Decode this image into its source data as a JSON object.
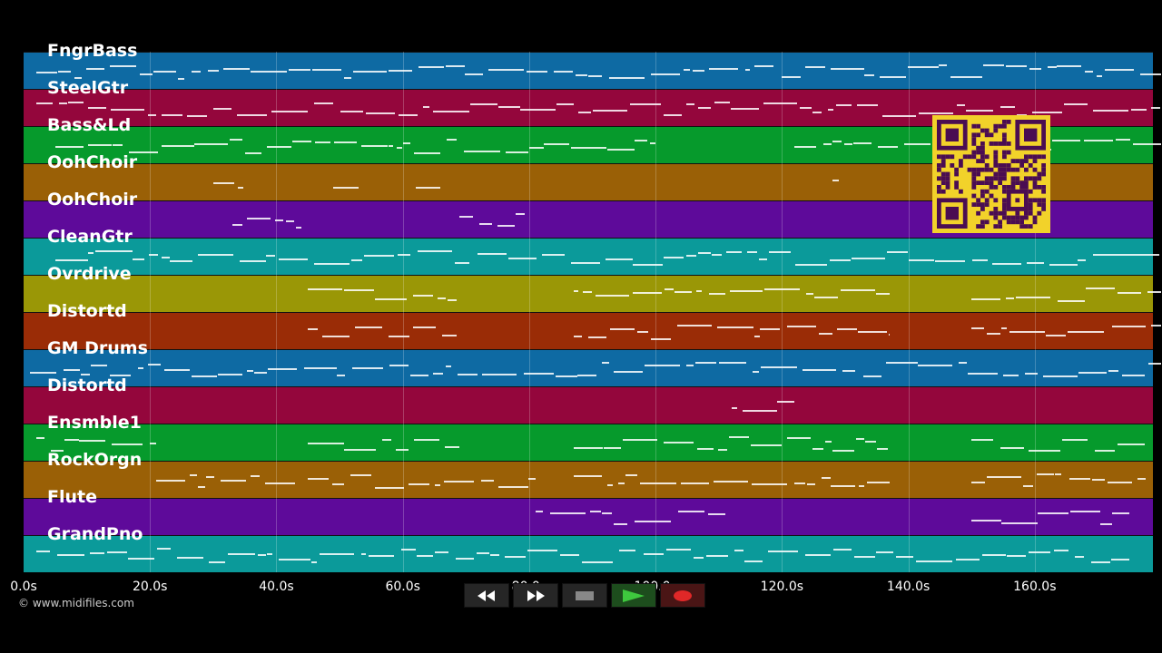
{
  "tracks": [
    {
      "label": "FngrBass",
      "color": "#0e6aa3"
    },
    {
      "label": "SteelGtr",
      "color": "#94063c"
    },
    {
      "label": "Bass&Ld",
      "color": "#069a2c"
    },
    {
      "label": "OohChoir",
      "color": "#9a6006"
    },
    {
      "label": "OohChoir",
      "color": "#5e0a9a"
    },
    {
      "label": "CleanGtr",
      "color": "#0b9a9a"
    },
    {
      "label": "Ovrdrive",
      "color": "#9a9706"
    },
    {
      "label": "Distortd",
      "color": "#9a2c06"
    },
    {
      "label": "GM Drums",
      "color": "#0e6aa3"
    },
    {
      "label": "Distortd",
      "color": "#94063c"
    },
    {
      "label": "Ensmble1",
      "color": "#069a2c"
    },
    {
      "label": "RockOrgn",
      "color": "#9a6006"
    },
    {
      "label": "Flute",
      "color": "#5e0a9a"
    },
    {
      "label": "GrandPno",
      "color": "#0b9a9a"
    }
  ],
  "timeline": {
    "ticks": [
      "0.0s",
      "20.0s",
      "40.0s",
      "60.0s",
      "80.0s",
      "100.0s",
      "120.0s",
      "140.0s",
      "160.0s"
    ],
    "tick_seconds": [
      0,
      20,
      40,
      60,
      80,
      100,
      120,
      140,
      160
    ],
    "max_seconds": 178.7
  },
  "transport": {
    "rewind_icon": "rewind-icon",
    "fast_forward_icon": "fast-forward-icon",
    "stop_icon": "stop-icon",
    "play_icon": "play-icon",
    "record_icon": "record-icon"
  },
  "copyright": "© www.midifiles.com"
}
